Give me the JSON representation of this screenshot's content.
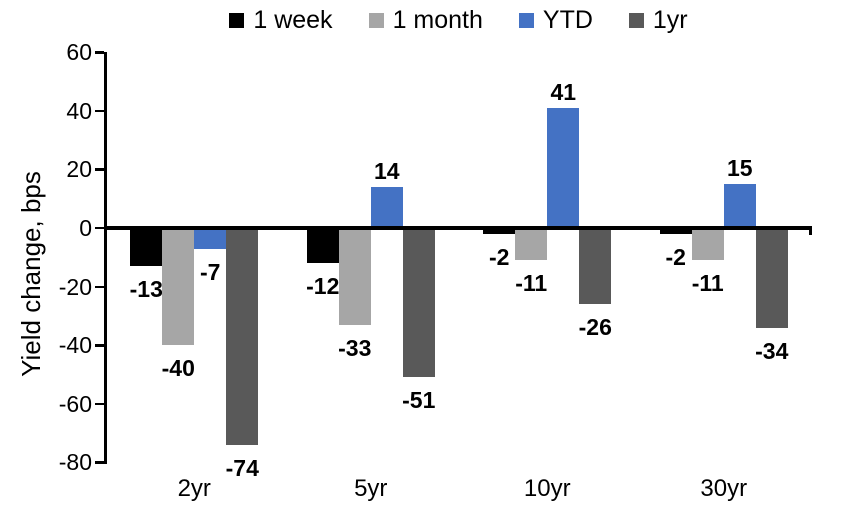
{
  "chart_data": {
    "type": "bar",
    "title": "",
    "ylabel": "Yield change, bps",
    "xlabel": "",
    "categories": [
      "2yr",
      "5yr",
      "10yr",
      "30yr"
    ],
    "series": [
      {
        "name": "1 week",
        "color": "#000000",
        "values": [
          -13,
          -12,
          -2,
          -2
        ]
      },
      {
        "name": "1 month",
        "color": "#A6A6A6",
        "values": [
          -40,
          -33,
          -11,
          -11
        ]
      },
      {
        "name": "YTD",
        "color": "#4472C4",
        "values": [
          -7,
          14,
          41,
          15
        ]
      },
      {
        "name": "1yr",
        "color": "#595959",
        "values": [
          -74,
          -51,
          -26,
          -34
        ]
      }
    ],
    "ylim": [
      -80,
      60
    ],
    "ytick_step": 20,
    "ytick_labels": [
      "60",
      "40",
      "20",
      "0",
      "-20",
      "-40",
      "-60",
      "-80"
    ],
    "grid": false,
    "legend_position": "top",
    "data_labels": "outside-end",
    "axis_color": "#000000",
    "background_color": "#FFFFFF"
  }
}
